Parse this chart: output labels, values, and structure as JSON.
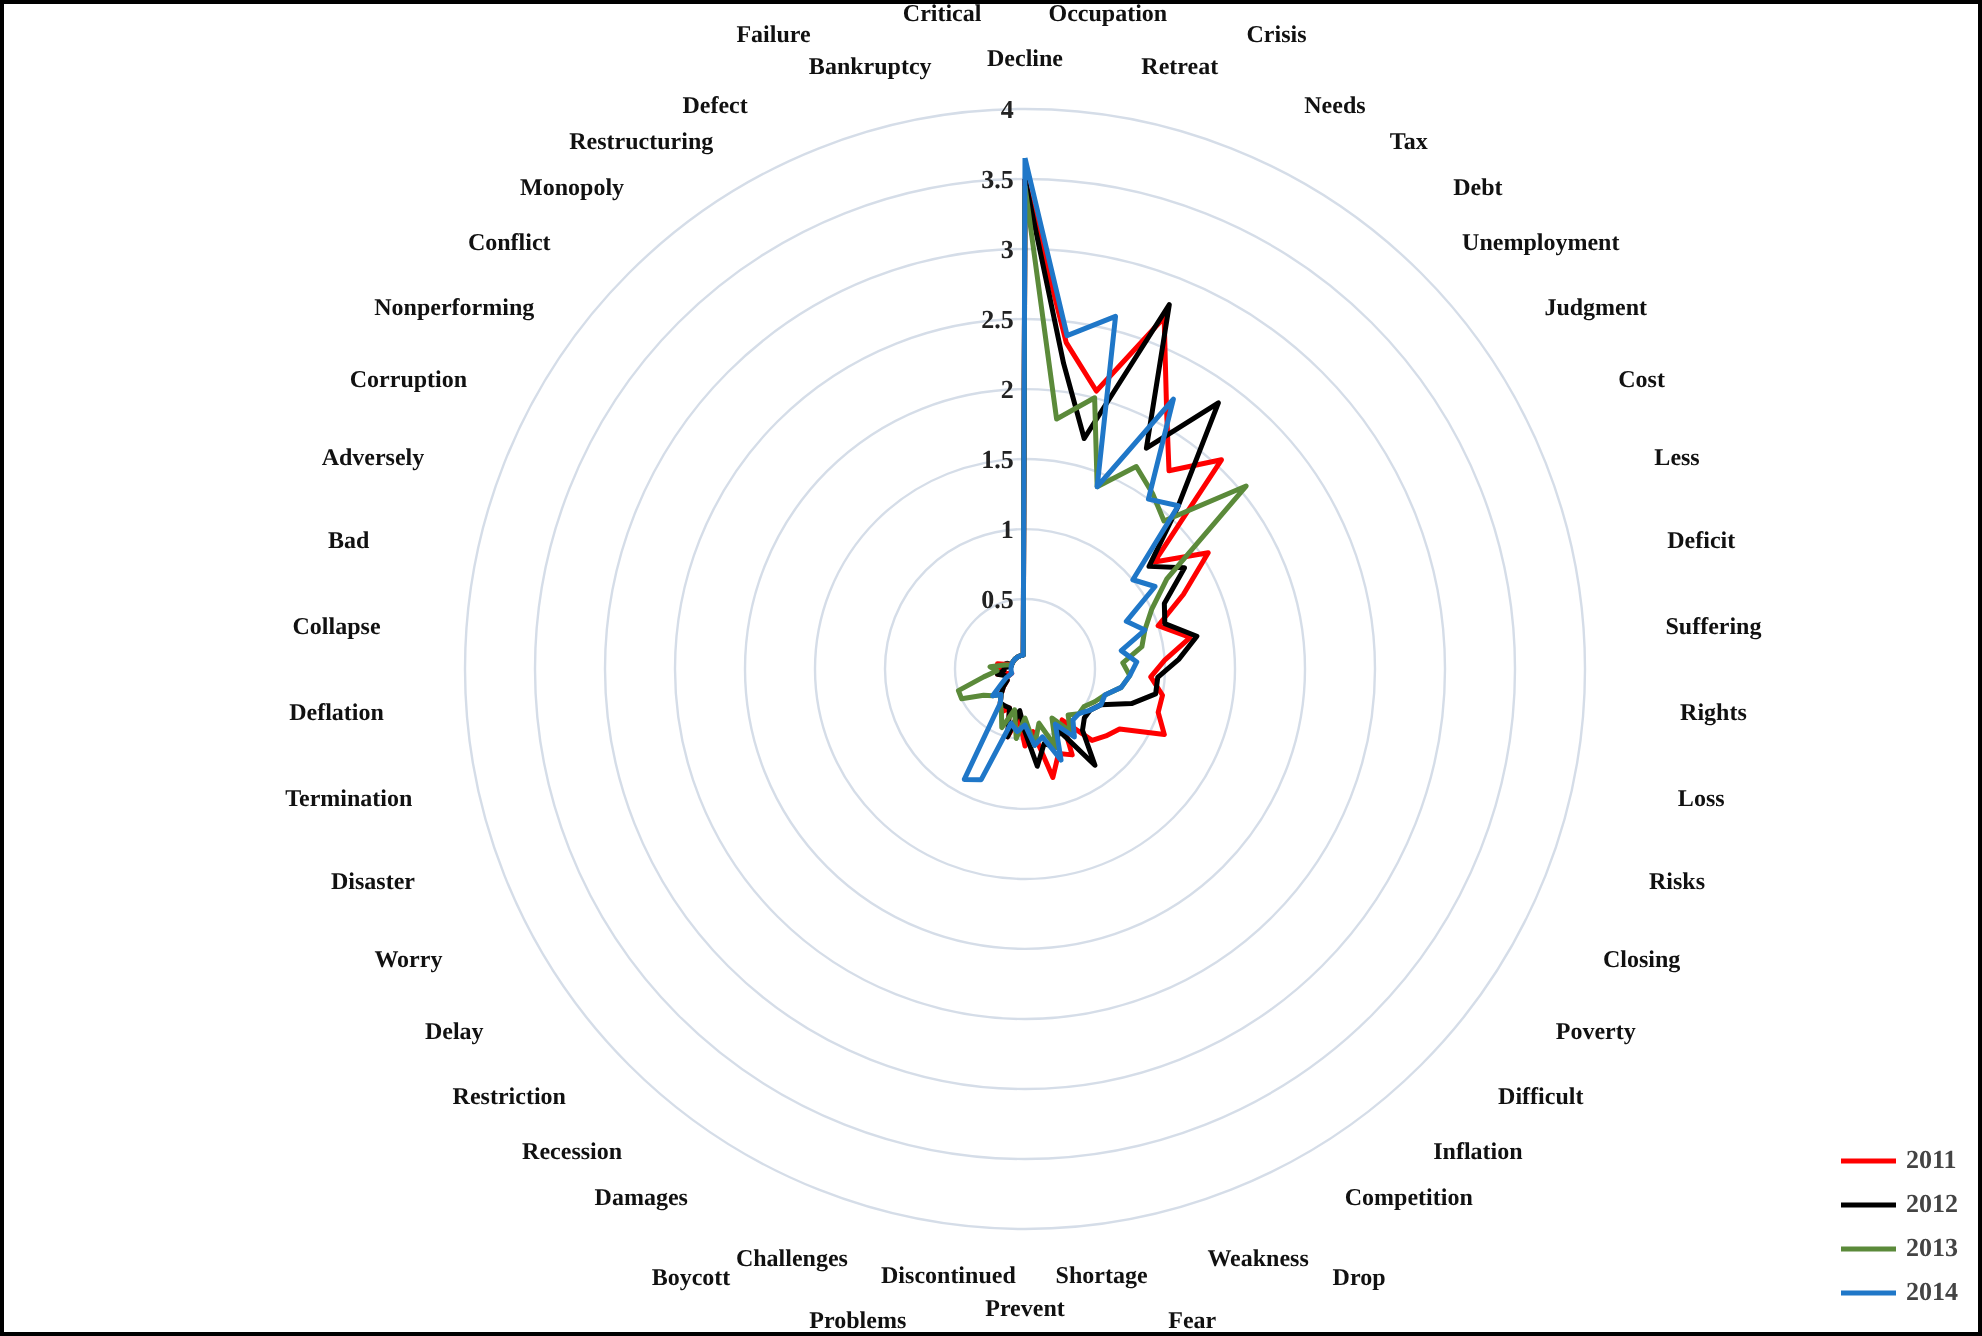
{
  "chart_data": {
    "type": "radar",
    "categories": [
      "Decline",
      "Occupation",
      "Retreat",
      "Crisis",
      "Needs",
      "Tax",
      "Debt",
      "Unemployment",
      "Judgment",
      "Cost",
      "Less",
      "Deficit",
      "Suffering",
      "Rights",
      "Loss",
      "Risks",
      "Closing",
      "Poverty",
      "Difficult",
      "Inflation",
      "Competition",
      "Drop",
      "Weakness",
      "Fear",
      "Shortage",
      "Prevent",
      "Discontinued",
      "Problems",
      "Challenges",
      "Boycott",
      "Damages",
      "Recession",
      "Restriction",
      "Delay",
      "Worry",
      "Disaster",
      "Termination",
      "Deflation",
      "Collapse",
      "Bad",
      "Adversely",
      "Corruption",
      "Nonperforming",
      "Conflict",
      "Monopoly",
      "Restructuring",
      "Defect",
      "Failure",
      "Bankruptcy",
      "Critical"
    ],
    "series": [
      {
        "name": "2011",
        "color": "#ff0000",
        "values": [
          3.5,
          2.35,
          2.05,
          2.7,
          2.1,
          1.75,
          2.05,
          1.2,
          1.55,
          1.25,
          1.0,
          1.2,
          1.0,
          0.9,
          1.0,
          1.0,
          1.1,
          0.8,
          0.75,
          0.7,
          0.45,
          0.7,
          0.65,
          0.8,
          0.45,
          0.55,
          0.35,
          0.5,
          0.3,
          0.35,
          0.3,
          0.25,
          0.2,
          0.15,
          0.15,
          0.1,
          0.2,
          0.15,
          0.2,
          0.2,
          0.1,
          0.1,
          0.1,
          0.1,
          0.1,
          0.1,
          0.1,
          0.1,
          0.1,
          0.1
        ]
      },
      {
        "name": "2012",
        "color": "#000000",
        "values": [
          3.5,
          2.2,
          1.7,
          2.8,
          1.8,
          2.35,
          1.6,
          1.15,
          1.35,
          1.1,
          1.05,
          1.25,
          1.1,
          0.95,
          0.95,
          0.8,
          0.6,
          0.55,
          0.55,
          0.6,
          0.85,
          0.5,
          0.6,
          0.55,
          0.7,
          0.45,
          0.3,
          0.5,
          0.3,
          0.3,
          0.3,
          0.25,
          0.2,
          0.15,
          0.15,
          0.15,
          0.2,
          0.15,
          0.15,
          0.1,
          0.1,
          0.1,
          0.1,
          0.1,
          0.1,
          0.1,
          0.1,
          0.1,
          0.1,
          0.1
        ]
      },
      {
        "name": "2013",
        "color": "#5b8a3a",
        "values": [
          3.45,
          1.8,
          2.0,
          1.4,
          1.65,
          1.55,
          1.45,
          2.05,
          1.2,
          1.0,
          0.9,
          0.85,
          0.7,
          0.75,
          0.7,
          0.6,
          0.55,
          0.5,
          0.5,
          0.45,
          0.55,
          0.4,
          0.6,
          0.4,
          0.55,
          0.35,
          0.5,
          0.3,
          0.45,
          0.35,
          0.3,
          0.25,
          0.3,
          0.35,
          0.5,
          0.5,
          0.3,
          0.2,
          0.25,
          0.15,
          0.1,
          0.1,
          0.1,
          0.1,
          0.1,
          0.1,
          0.1,
          0.1,
          0.1,
          0.1
        ]
      },
      {
        "name": "2014",
        "color": "#1f77c8",
        "values": [
          3.65,
          2.4,
          2.6,
          1.4,
          2.2,
          1.5,
          1.6,
          1.0,
          1.1,
          0.8,
          0.9,
          0.7,
          0.8,
          0.75,
          0.7,
          0.6,
          0.6,
          0.55,
          0.5,
          0.5,
          0.6,
          0.45,
          0.7,
          0.5,
          0.55,
          0.4,
          0.45,
          0.4,
          0.85,
          0.9,
          0.3,
          0.25,
          0.3,
          0.2,
          0.15,
          0.1,
          0.1,
          0.1,
          0.1,
          0.1,
          0.1,
          0.1,
          0.1,
          0.1,
          0.1,
          0.1,
          0.1,
          0.1,
          0.1,
          0.1
        ]
      }
    ],
    "ylim": [
      0,
      4
    ],
    "yticks": [
      0,
      0.5,
      1,
      1.5,
      2,
      2.5,
      3,
      3.5,
      4
    ],
    "grid": true,
    "legend": "bottom right"
  }
}
